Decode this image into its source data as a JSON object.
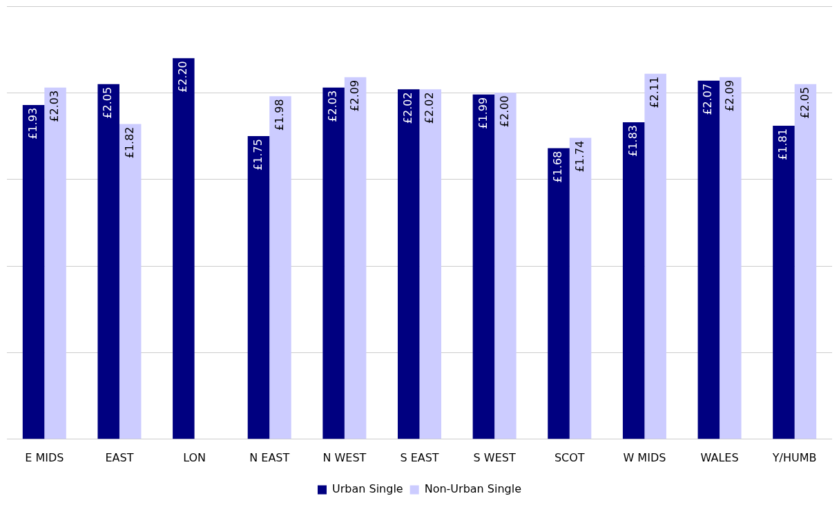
{
  "chart_data": {
    "type": "bar",
    "categories": [
      "E MIDS",
      "EAST",
      "LON",
      "N EAST",
      "N WEST",
      "S EAST",
      "S WEST",
      "SCOT",
      "W MIDS",
      "WALES",
      "Y/HUMB"
    ],
    "series": [
      {
        "name": "Urban Single",
        "color": "#000080",
        "values": [
          1.93,
          2.05,
          2.2,
          1.75,
          2.03,
          2.02,
          1.99,
          1.68,
          1.83,
          2.07,
          1.81
        ],
        "value_labels": [
          "£1.93",
          "£2.05",
          "£2.20",
          "£1.75",
          "£2.03",
          "£2.02",
          "£1.99",
          "£1.68",
          "£1.83",
          "£2.07",
          "£1.81"
        ]
      },
      {
        "name": "Non-Urban Single",
        "color": "#ccccff",
        "values": [
          2.03,
          1.82,
          null,
          1.98,
          2.09,
          2.02,
          2.0,
          1.74,
          2.11,
          2.09,
          2.05
        ],
        "value_labels": [
          "£2.03",
          "£1.82",
          null,
          "£1.98",
          "£2.09",
          "£2.02",
          "£2.00",
          "£1.74",
          "£2.11",
          "£2.09",
          "£2.05"
        ]
      }
    ],
    "ylim": [
      0,
      2.5
    ],
    "yticks": [
      {
        "value": 0,
        "label": null
      },
      {
        "value": 0.5,
        "label": null
      },
      {
        "value": 1,
        "label": null
      },
      {
        "value": 1.5,
        "label": null
      },
      {
        "value": 2,
        "label": null
      },
      {
        "value": 2.5,
        "label": null
      }
    ],
    "grid": "y",
    "legend": "bottom",
    "tick_labels": "x"
  }
}
